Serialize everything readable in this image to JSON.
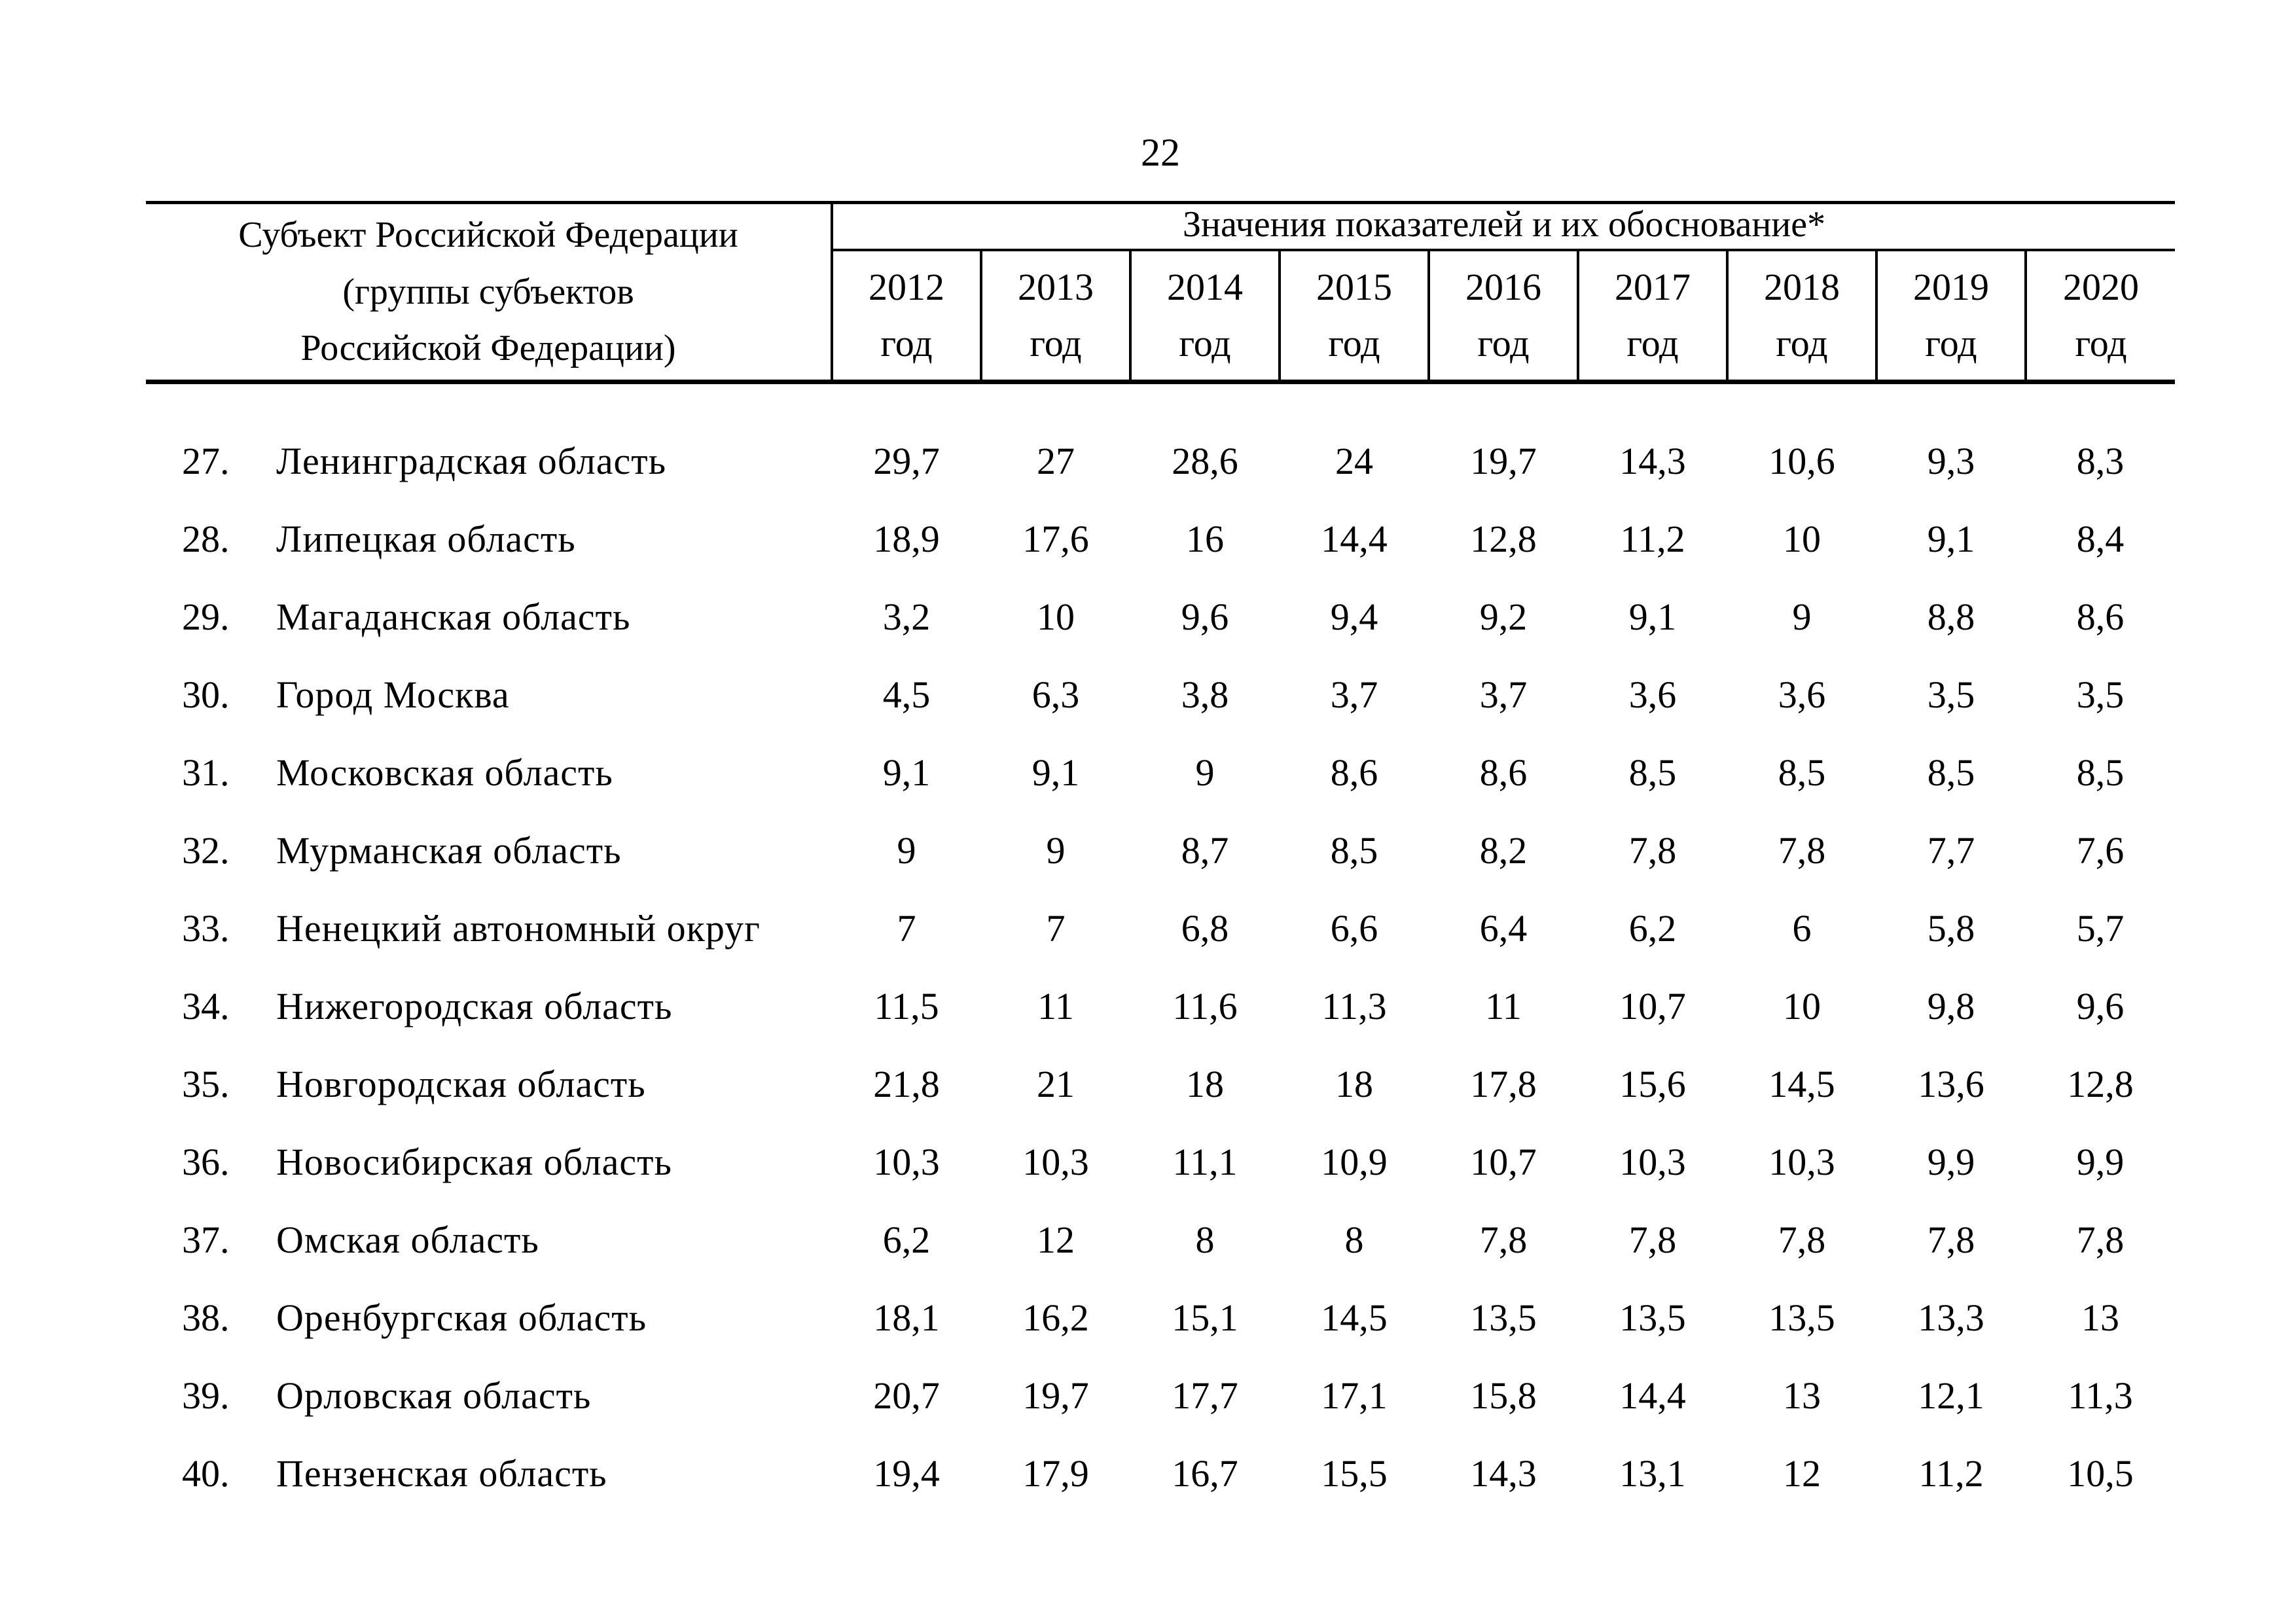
{
  "page": {
    "number": "22"
  },
  "table": {
    "col1_header": {
      "line1": "Субъект Российской Федерации",
      "line2": "(группы субъектов",
      "line3": "Российской Федерации)"
    },
    "span_header": "Значения показателей и их обоснование*",
    "year_label": "год",
    "years": [
      "2012",
      "2013",
      "2014",
      "2015",
      "2016",
      "2017",
      "2018",
      "2019",
      "2020"
    ],
    "rows": [
      {
        "num": "27.",
        "name": "Ленинградская область",
        "values": [
          "29,7",
          "27",
          "28,6",
          "24",
          "19,7",
          "14,3",
          "10,6",
          "9,3",
          "8,3"
        ]
      },
      {
        "num": "28.",
        "name": "Липецкая область",
        "values": [
          "18,9",
          "17,6",
          "16",
          "14,4",
          "12,8",
          "11,2",
          "10",
          "9,1",
          "8,4"
        ]
      },
      {
        "num": "29.",
        "name": "Магаданская область",
        "values": [
          "3,2",
          "10",
          "9,6",
          "9,4",
          "9,2",
          "9,1",
          "9",
          "8,8",
          "8,6"
        ]
      },
      {
        "num": "30.",
        "name": "Город Москва",
        "values": [
          "4,5",
          "6,3",
          "3,8",
          "3,7",
          "3,7",
          "3,6",
          "3,6",
          "3,5",
          "3,5"
        ]
      },
      {
        "num": "31.",
        "name": "Московская область",
        "values": [
          "9,1",
          "9,1",
          "9",
          "8,6",
          "8,6",
          "8,5",
          "8,5",
          "8,5",
          "8,5"
        ]
      },
      {
        "num": "32.",
        "name": "Мурманская область",
        "values": [
          "9",
          "9",
          "8,7",
          "8,5",
          "8,2",
          "7,8",
          "7,8",
          "7,7",
          "7,6"
        ]
      },
      {
        "num": "33.",
        "name": "Ненецкий автономный округ",
        "values": [
          "7",
          "7",
          "6,8",
          "6,6",
          "6,4",
          "6,2",
          "6",
          "5,8",
          "5,7"
        ]
      },
      {
        "num": "34.",
        "name": "Нижегородская область",
        "values": [
          "11,5",
          "11",
          "11,6",
          "11,3",
          "11",
          "10,7",
          "10",
          "9,8",
          "9,6"
        ]
      },
      {
        "num": "35.",
        "name": "Новгородская область",
        "values": [
          "21,8",
          "21",
          "18",
          "18",
          "17,8",
          "15,6",
          "14,5",
          "13,6",
          "12,8"
        ]
      },
      {
        "num": "36.",
        "name": "Новосибирская область",
        "values": [
          "10,3",
          "10,3",
          "11,1",
          "10,9",
          "10,7",
          "10,3",
          "10,3",
          "9,9",
          "9,9"
        ]
      },
      {
        "num": "37.",
        "name": "Омская область",
        "values": [
          "6,2",
          "12",
          "8",
          "8",
          "7,8",
          "7,8",
          "7,8",
          "7,8",
          "7,8"
        ]
      },
      {
        "num": "38.",
        "name": "Оренбургская область",
        "values": [
          "18,1",
          "16,2",
          "15,1",
          "14,5",
          "13,5",
          "13,5",
          "13,5",
          "13,3",
          "13"
        ]
      },
      {
        "num": "39.",
        "name": "Орловская область",
        "values": [
          "20,7",
          "19,7",
          "17,7",
          "17,1",
          "15,8",
          "14,4",
          "13",
          "12,1",
          "11,3"
        ]
      },
      {
        "num": "40.",
        "name": "Пензенская область",
        "values": [
          "19,4",
          "17,9",
          "16,7",
          "15,5",
          "14,3",
          "13,1",
          "12",
          "11,2",
          "10,5"
        ]
      }
    ]
  }
}
